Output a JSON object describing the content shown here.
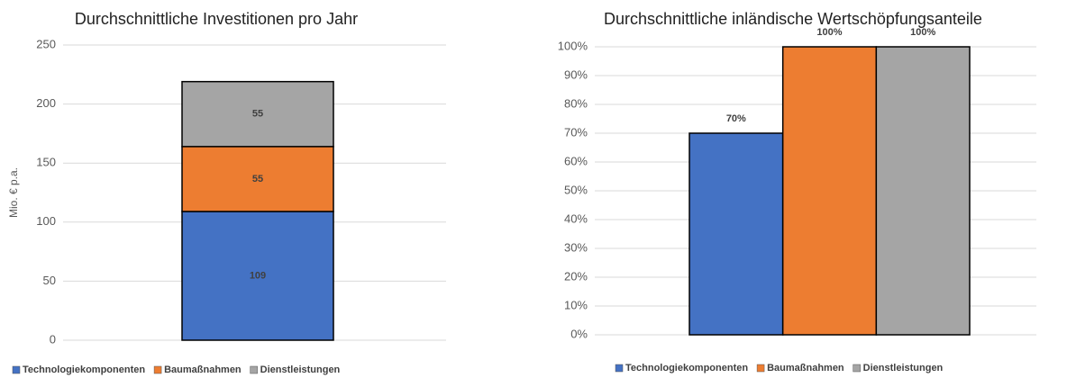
{
  "chart_data": [
    {
      "type": "stacked_bar",
      "title": "Durchschnittliche Investitionen pro Jahr",
      "ylabel": "Mio. € p.a.",
      "categories": [
        null
      ],
      "series": [
        {
          "name": "Technologiekomponenten",
          "color": "#4472c4",
          "values": [
            109
          ]
        },
        {
          "name": "Baumaßnahmen",
          "color": "#ed7d31",
          "values": [
            55
          ]
        },
        {
          "name": "Dienstleistungen",
          "color": "#a5a5a5",
          "values": [
            55
          ]
        }
      ],
      "ylim": [
        0,
        250
      ],
      "yticks": [
        0,
        50,
        100,
        150,
        200,
        250
      ],
      "grid": true,
      "legend": "bottom"
    },
    {
      "type": "grouped_bar",
      "title": "Durchschnittliche inländische Wertschöpfungsanteile",
      "categories": [
        null
      ],
      "series": [
        {
          "name": "Technologiekomponenten",
          "color": "#4472c4",
          "values": [
            70
          ],
          "value_labels": [
            "70%"
          ]
        },
        {
          "name": "Baumaßnahmen",
          "color": "#ed7d31",
          "values": [
            100
          ],
          "value_labels": [
            "100%"
          ]
        },
        {
          "name": "Dienstleistungen",
          "color": "#a5a5a5",
          "values": [
            100
          ],
          "value_labels": [
            "100%"
          ]
        }
      ],
      "ylim": [
        0,
        100
      ],
      "yticks": [
        {
          "value": 0,
          "label": "0%"
        },
        {
          "value": 10,
          "label": "10%"
        },
        {
          "value": 20,
          "label": "20%"
        },
        {
          "value": 30,
          "label": "30%"
        },
        {
          "value": 40,
          "label": "40%"
        },
        {
          "value": 50,
          "label": "50%"
        },
        {
          "value": 60,
          "label": "60%"
        },
        {
          "value": 70,
          "label": "70%"
        },
        {
          "value": 80,
          "label": "80%"
        },
        {
          "value": 90,
          "label": "90%"
        },
        {
          "value": 100,
          "label": "100%"
        }
      ],
      "grid": true,
      "legend": "bottom"
    }
  ]
}
